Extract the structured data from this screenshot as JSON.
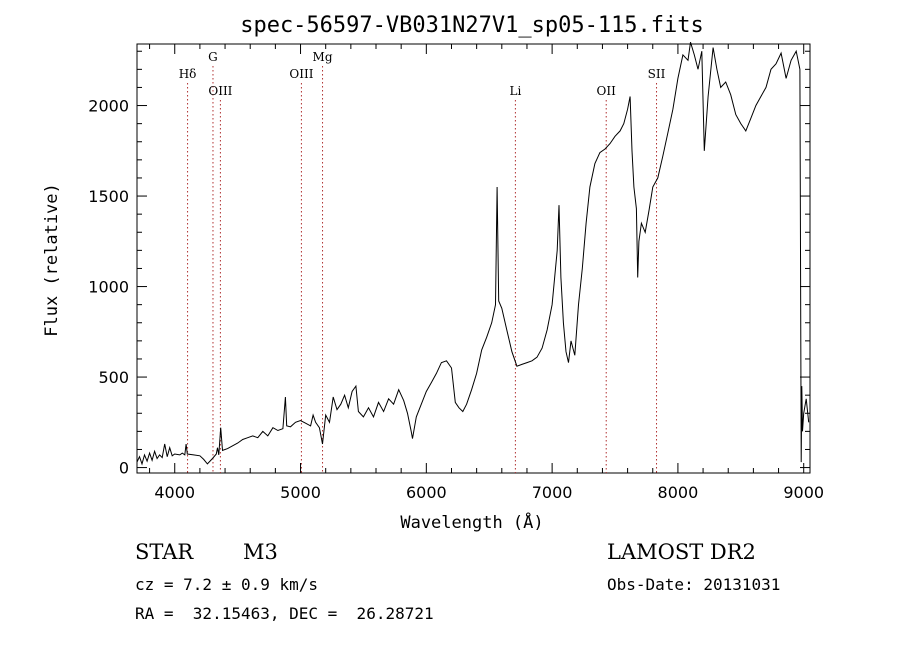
{
  "chart_data": {
    "type": "line",
    "title": "spec-56597-VB031N27V1_sp05-115.fits",
    "xlabel": "Wavelength (Å)",
    "ylabel": "Flux (relative)",
    "xlim": [
      3700,
      9050
    ],
    "ylim": [
      -30,
      2340
    ],
    "xticks": [
      4000,
      5000,
      6000,
      7000,
      8000,
      9000
    ],
    "yticks": [
      0,
      500,
      1000,
      1500,
      2000
    ],
    "grid": false,
    "series": [
      {
        "values": [
          [
            3700,
            30
          ],
          [
            3720,
            60
          ],
          [
            3740,
            20
          ],
          [
            3760,
            70
          ],
          [
            3780,
            35
          ],
          [
            3800,
            80
          ],
          [
            3820,
            40
          ],
          [
            3840,
            90
          ],
          [
            3860,
            50
          ],
          [
            3880,
            70
          ],
          [
            3900,
            55
          ],
          [
            3920,
            130
          ],
          [
            3940,
            60
          ],
          [
            3960,
            110
          ],
          [
            3980,
            65
          ],
          [
            4000,
            75
          ],
          [
            4040,
            70
          ],
          [
            4060,
            80
          ],
          [
            4080,
            70
          ],
          [
            4090,
            130
          ],
          [
            4100,
            75
          ],
          [
            4150,
            70
          ],
          [
            4200,
            65
          ],
          [
            4230,
            45
          ],
          [
            4260,
            20
          ],
          [
            4300,
            50
          ],
          [
            4330,
            75
          ],
          [
            4340,
            110
          ],
          [
            4350,
            70
          ],
          [
            4365,
            220
          ],
          [
            4380,
            95
          ],
          [
            4420,
            105
          ],
          [
            4460,
            120
          ],
          [
            4500,
            135
          ],
          [
            4540,
            155
          ],
          [
            4580,
            165
          ],
          [
            4620,
            175
          ],
          [
            4660,
            165
          ],
          [
            4700,
            200
          ],
          [
            4740,
            175
          ],
          [
            4780,
            220
          ],
          [
            4820,
            205
          ],
          [
            4860,
            215
          ],
          [
            4880,
            390
          ],
          [
            4890,
            230
          ],
          [
            4920,
            225
          ],
          [
            4960,
            250
          ],
          [
            5000,
            260
          ],
          [
            5040,
            245
          ],
          [
            5080,
            230
          ],
          [
            5100,
            290
          ],
          [
            5120,
            250
          ],
          [
            5150,
            220
          ],
          [
            5175,
            130
          ],
          [
            5200,
            290
          ],
          [
            5230,
            250
          ],
          [
            5260,
            390
          ],
          [
            5290,
            320
          ],
          [
            5320,
            350
          ],
          [
            5350,
            400
          ],
          [
            5380,
            330
          ],
          [
            5410,
            420
          ],
          [
            5440,
            450
          ],
          [
            5460,
            310
          ],
          [
            5500,
            280
          ],
          [
            5540,
            330
          ],
          [
            5580,
            280
          ],
          [
            5620,
            360
          ],
          [
            5660,
            310
          ],
          [
            5700,
            380
          ],
          [
            5740,
            350
          ],
          [
            5780,
            430
          ],
          [
            5820,
            370
          ],
          [
            5850,
            300
          ],
          [
            5880,
            200
          ],
          [
            5890,
            160
          ],
          [
            5920,
            280
          ],
          [
            5960,
            350
          ],
          [
            6000,
            420
          ],
          [
            6040,
            470
          ],
          [
            6080,
            520
          ],
          [
            6120,
            580
          ],
          [
            6160,
            590
          ],
          [
            6200,
            550
          ],
          [
            6230,
            360
          ],
          [
            6260,
            330
          ],
          [
            6290,
            310
          ],
          [
            6320,
            350
          ],
          [
            6360,
            430
          ],
          [
            6400,
            520
          ],
          [
            6440,
            650
          ],
          [
            6480,
            720
          ],
          [
            6520,
            800
          ],
          [
            6550,
            900
          ],
          [
            6563,
            1550
          ],
          [
            6575,
            920
          ],
          [
            6600,
            880
          ],
          [
            6640,
            760
          ],
          [
            6680,
            640
          ],
          [
            6720,
            560
          ],
          [
            6760,
            570
          ],
          [
            6800,
            580
          ],
          [
            6840,
            590
          ],
          [
            6880,
            610
          ],
          [
            6920,
            660
          ],
          [
            6960,
            760
          ],
          [
            7000,
            900
          ],
          [
            7040,
            1200
          ],
          [
            7055,
            1450
          ],
          [
            7070,
            1050
          ],
          [
            7090,
            800
          ],
          [
            7110,
            640
          ],
          [
            7130,
            580
          ],
          [
            7150,
            700
          ],
          [
            7180,
            620
          ],
          [
            7210,
            900
          ],
          [
            7240,
            1100
          ],
          [
            7270,
            1350
          ],
          [
            7300,
            1550
          ],
          [
            7340,
            1680
          ],
          [
            7380,
            1740
          ],
          [
            7420,
            1760
          ],
          [
            7460,
            1790
          ],
          [
            7500,
            1830
          ],
          [
            7540,
            1860
          ],
          [
            7570,
            1900
          ],
          [
            7600,
            1980
          ],
          [
            7620,
            2050
          ],
          [
            7635,
            1750
          ],
          [
            7650,
            1550
          ],
          [
            7670,
            1430
          ],
          [
            7680,
            1050
          ],
          [
            7690,
            1250
          ],
          [
            7710,
            1350
          ],
          [
            7740,
            1300
          ],
          [
            7770,
            1420
          ],
          [
            7800,
            1550
          ],
          [
            7840,
            1600
          ],
          [
            7880,
            1720
          ],
          [
            7920,
            1850
          ],
          [
            7960,
            1980
          ],
          [
            8000,
            2150
          ],
          [
            8040,
            2280
          ],
          [
            8080,
            2250
          ],
          [
            8100,
            2350
          ],
          [
            8130,
            2280
          ],
          [
            8160,
            2200
          ],
          [
            8190,
            2300
          ],
          [
            8210,
            1750
          ],
          [
            8240,
            2050
          ],
          [
            8280,
            2320
          ],
          [
            8310,
            2200
          ],
          [
            8340,
            2100
          ],
          [
            8380,
            2130
          ],
          [
            8420,
            2060
          ],
          [
            8460,
            1950
          ],
          [
            8500,
            1900
          ],
          [
            8540,
            1860
          ],
          [
            8580,
            1930
          ],
          [
            8620,
            2000
          ],
          [
            8660,
            2050
          ],
          [
            8700,
            2100
          ],
          [
            8740,
            2200
          ],
          [
            8780,
            2230
          ],
          [
            8820,
            2290
          ],
          [
            8860,
            2150
          ],
          [
            8900,
            2250
          ],
          [
            8940,
            2300
          ],
          [
            8970,
            2200
          ],
          [
            8980,
            30
          ],
          [
            8985,
            450
          ],
          [
            8990,
            200
          ],
          [
            9000,
            300
          ],
          [
            9020,
            380
          ],
          [
            9040,
            250
          ]
        ]
      }
    ],
    "annotations": [
      {
        "label": "Hδ",
        "x": 4102,
        "row": "mid"
      },
      {
        "label": "G",
        "x": 4304,
        "row": "top"
      },
      {
        "label": "OIII",
        "x": 4363,
        "row": "low"
      },
      {
        "label": "OIII",
        "x": 5007,
        "row": "mid"
      },
      {
        "label": "Mg",
        "x": 5175,
        "row": "top"
      },
      {
        "label": "Li",
        "x": 6708,
        "row": "low"
      },
      {
        "label": "OII",
        "x": 7430,
        "row": "low"
      },
      {
        "label": "SII",
        "x": 7830,
        "row": "mid"
      }
    ],
    "line_color": "#000000",
    "marker_color": "#b03030"
  },
  "info": {
    "object_type": "STAR",
    "subclass": "M3",
    "survey": "LAMOST DR2",
    "velocity": "cz = 7.2 ± 0.9 km/s",
    "obs_date": "Obs-Date: 20131031",
    "coords": "RA =  32.15463, DEC =  26.28721"
  }
}
